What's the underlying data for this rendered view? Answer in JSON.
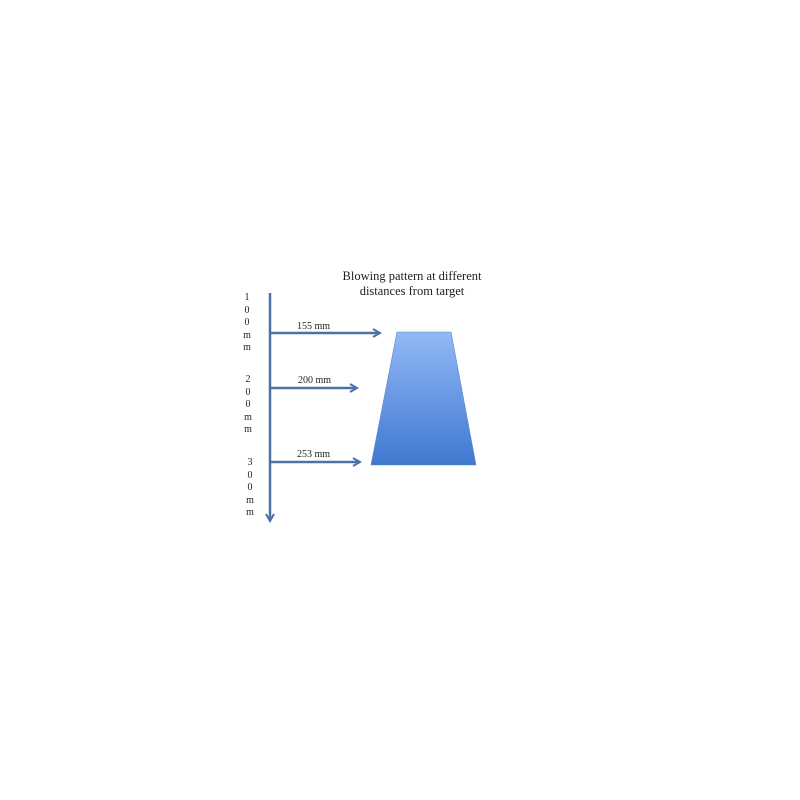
{
  "title": [
    "Blowing pattern at different",
    "distances from target"
  ],
  "distance_markers": [
    {
      "label": "100mm",
      "arrow_label": "155 mm"
    },
    {
      "label": "200mm",
      "arrow_label": "200 mm"
    },
    {
      "label": "300mm",
      "arrow_label": "253 mm"
    }
  ],
  "colors": {
    "arrow": "#4a72a8",
    "shape_top": "#92b8f6",
    "shape_bottom": "#3f78cf"
  }
}
